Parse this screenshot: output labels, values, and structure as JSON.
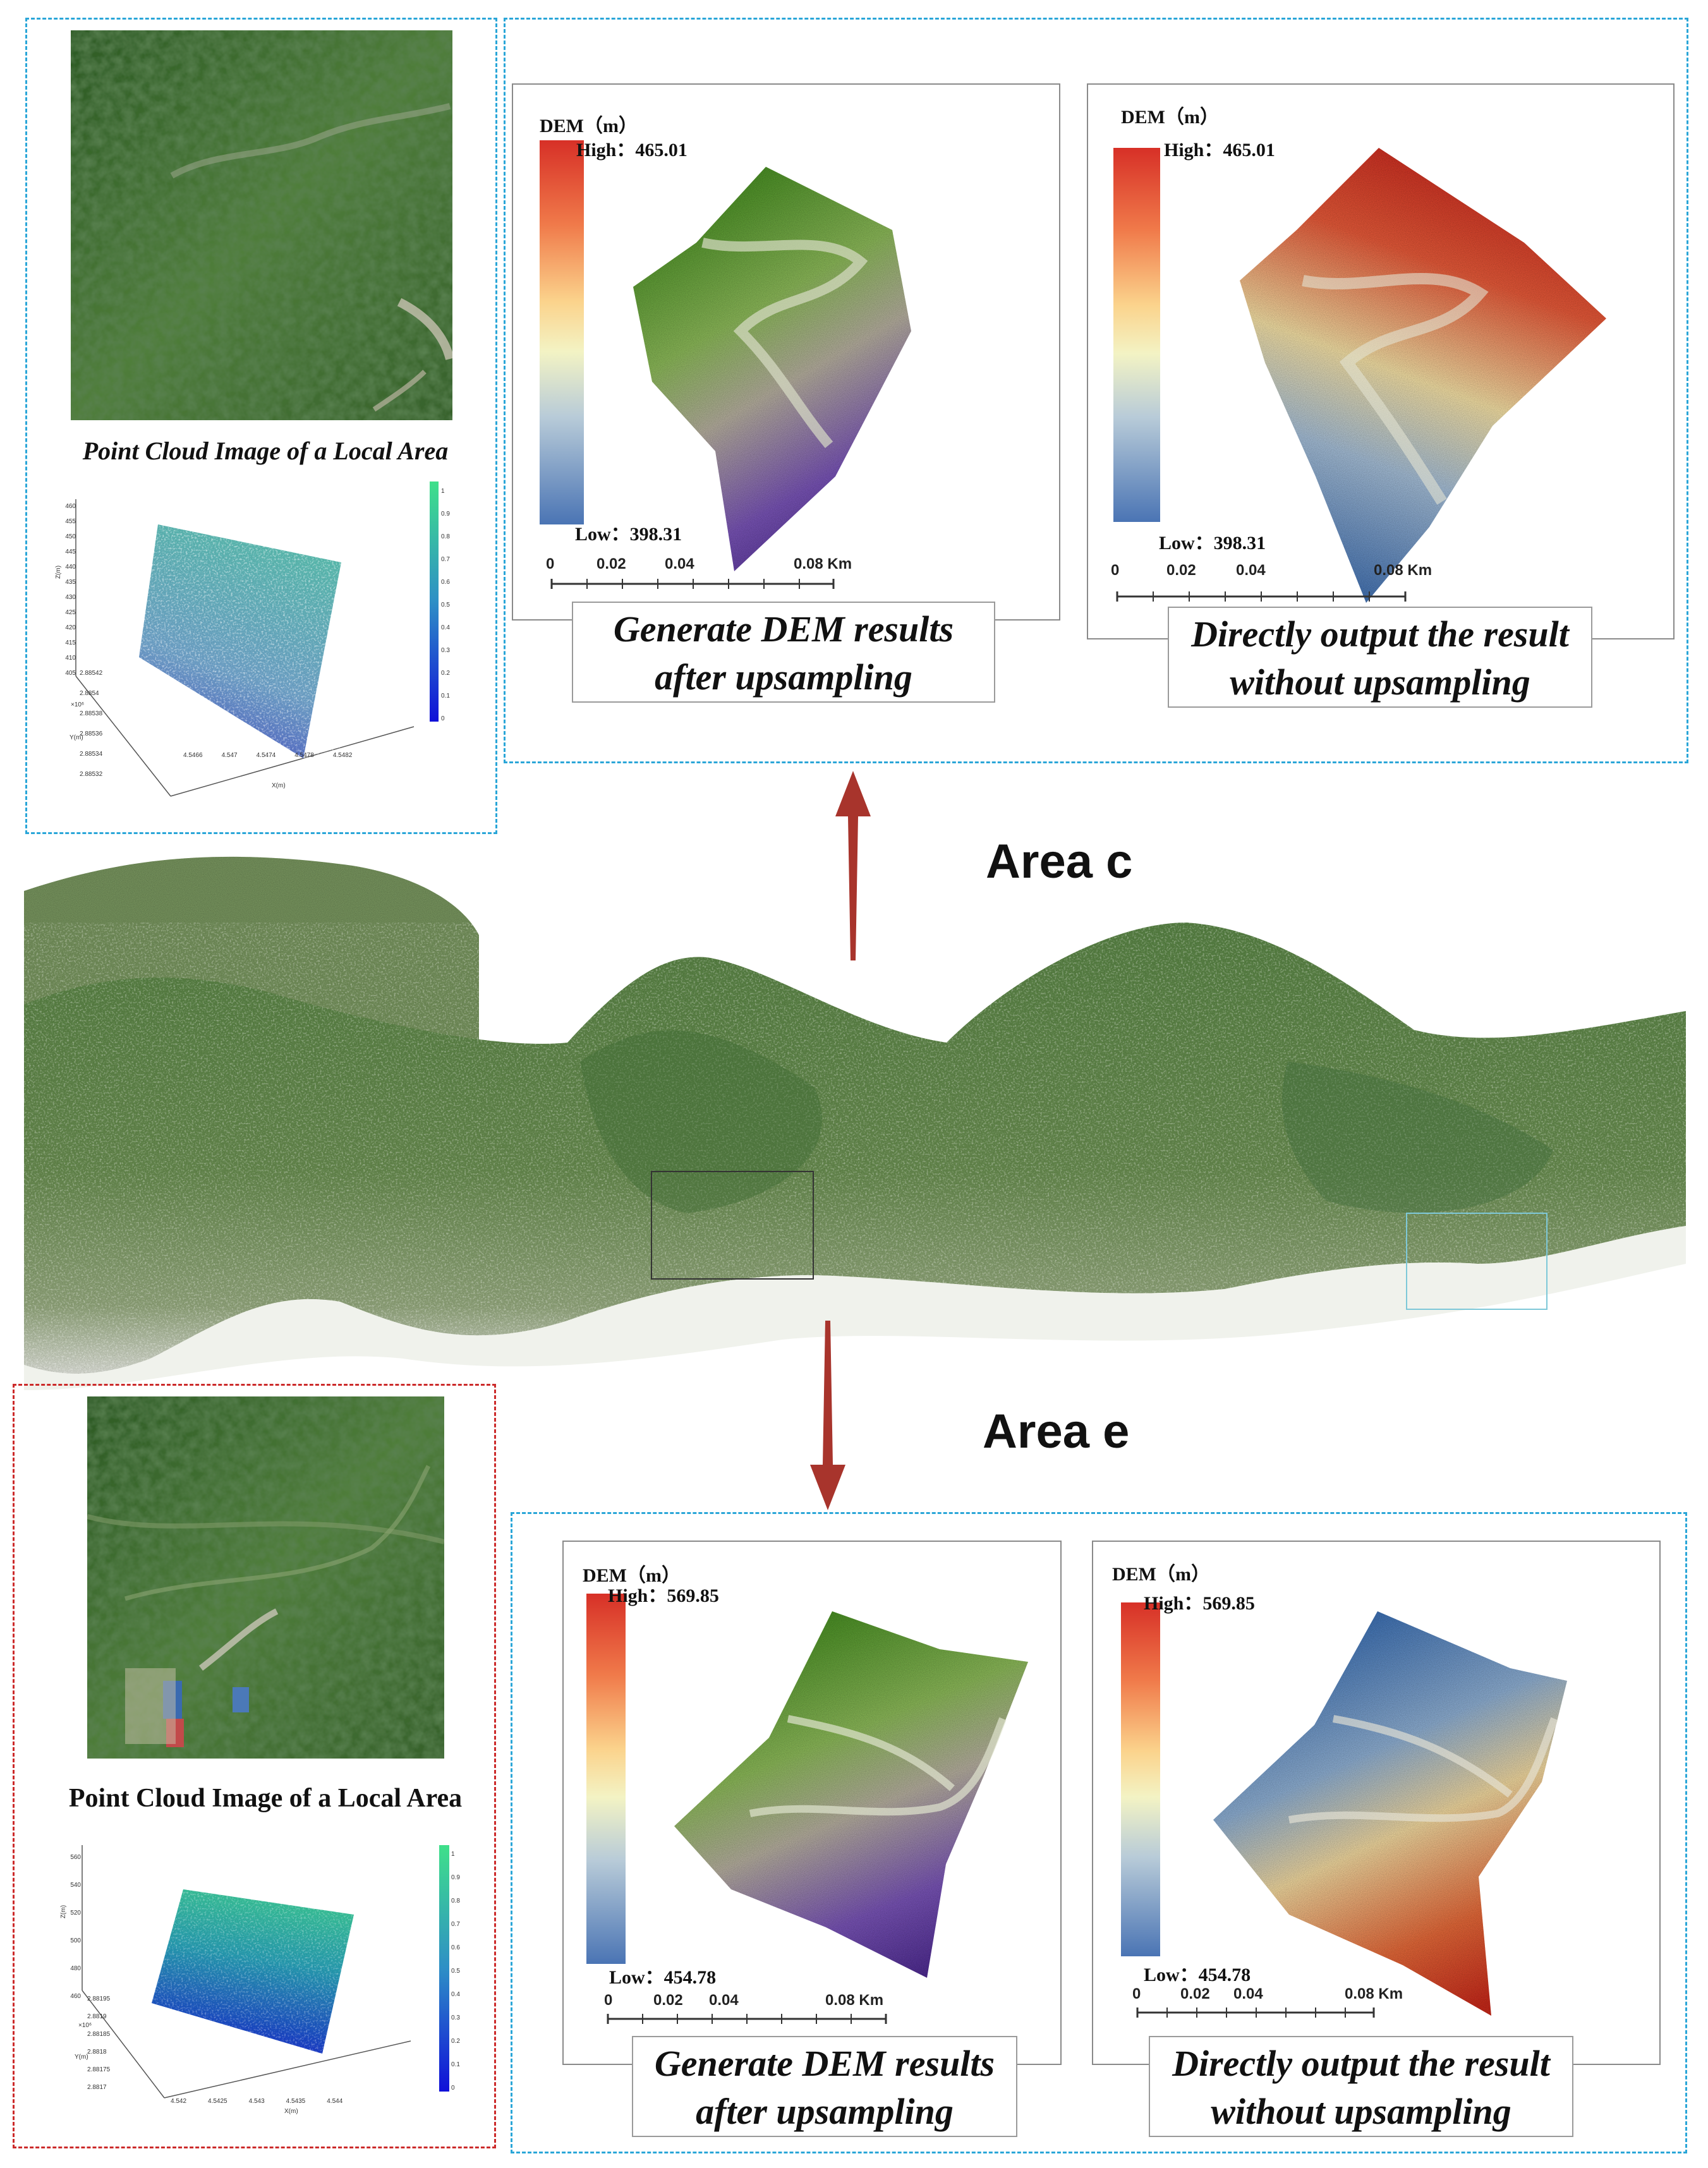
{
  "area_labels": {
    "c": "Area c",
    "e": "Area e"
  },
  "point_cloud_title": "Point Cloud Image of a Local Area",
  "dem_panels": [
    {
      "id": "c-up",
      "legend_title": "DEM（m）",
      "high": "High：465.01",
      "low": "Low：398.31",
      "scale": [
        "0",
        "0.02",
        "0.04",
        "0.08 Km"
      ],
      "caption": [
        "Generate DEM results",
        "after upsampling"
      ]
    },
    {
      "id": "c-dir",
      "legend_title": "DEM（m）",
      "high": "High：465.01",
      "low": "Low：398.31",
      "scale": [
        "0",
        "0.02",
        "0.04",
        "0.08 Km"
      ],
      "caption": [
        "Directly output the result",
        "without upsampling"
      ]
    },
    {
      "id": "e-up",
      "legend_title": "DEM（m）",
      "high": "High：569.85",
      "low": "Low：454.78",
      "scale": [
        "0",
        "0.02",
        "0.04",
        "0.08 Km"
      ],
      "caption": [
        "Generate DEM results",
        "after upsampling"
      ]
    },
    {
      "id": "e-dir",
      "legend_title": "DEM（m）",
      "high": "High：569.85",
      "low": "Low：454.78",
      "scale": [
        "0",
        "0.02",
        "0.04",
        "0.08 Km"
      ],
      "caption": [
        "Directly output the result",
        "without upsampling"
      ]
    }
  ],
  "plot_axes": {
    "c": {
      "z_label": "Z(m)",
      "y_label": "Y(m)",
      "x_label": "X(m)",
      "exp": "×10⁶",
      "zticks": [
        "460",
        "455",
        "450",
        "445",
        "440",
        "435",
        "430",
        "425",
        "420",
        "415",
        "410",
        "405"
      ],
      "yticks": [
        "2.88542",
        "2.8854",
        "2.88538",
        "2.88536",
        "2.88534",
        "2.88532"
      ],
      "xticks": [
        "4.5466",
        "4.547",
        "4.5474",
        "4.5478",
        "4.5482"
      ],
      "cticks": [
        "1",
        "0.9",
        "0.8",
        "0.7",
        "0.6",
        "0.5",
        "0.4",
        "0.3",
        "0.2",
        "0.1",
        "0"
      ]
    },
    "e": {
      "z_label": "Z(m)",
      "y_label": "Y(m)",
      "x_label": "X(m)",
      "exp": "×10⁶",
      "zticks": [
        "560",
        "540",
        "520",
        "500",
        "480",
        "460"
      ],
      "yticks": [
        "2.88195",
        "2.8819",
        "2.88185",
        "2.8818",
        "2.88175",
        "2.8817"
      ],
      "xticks": [
        "4.542",
        "4.5425",
        "4.543",
        "4.5435",
        "4.544"
      ],
      "cticks": [
        "1",
        "0.9",
        "0.8",
        "0.7",
        "0.6",
        "0.5",
        "0.4",
        "0.3",
        "0.2",
        "0.1",
        "0"
      ]
    }
  },
  "colors": {
    "dashed_blue": "#2aa6d8",
    "dashed_red": "#cc2a2a",
    "arrow": "#a8342c"
  }
}
